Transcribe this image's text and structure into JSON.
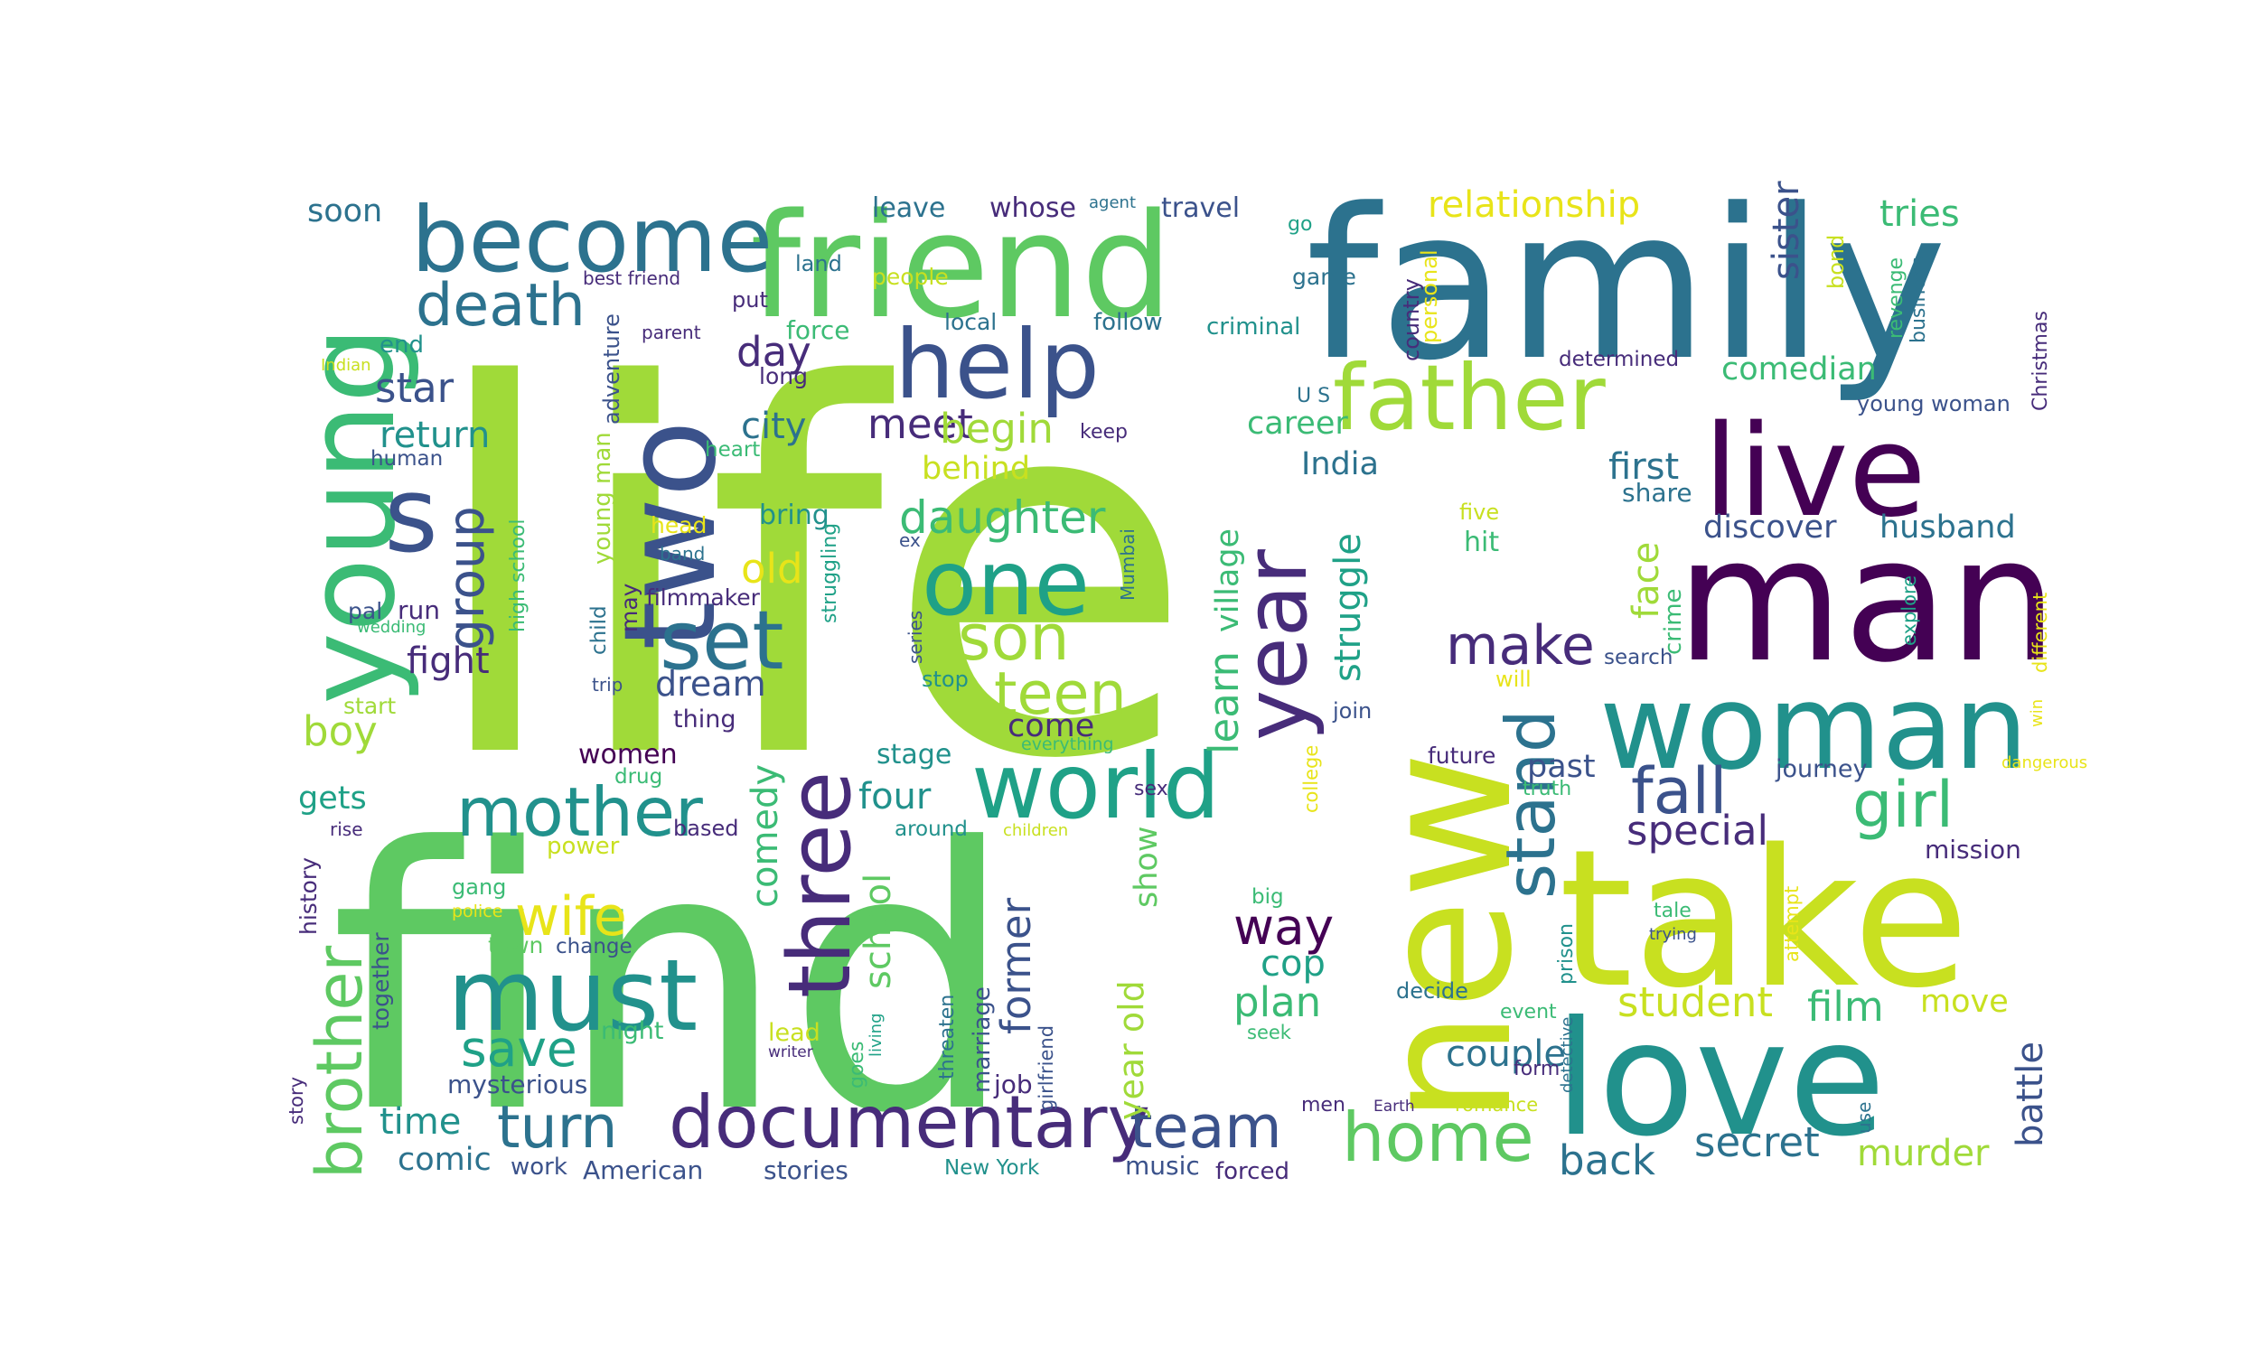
{
  "palette": {
    "dark_purple": "#440154",
    "indigo": "#472c7a",
    "blue": "#3b528b",
    "steel": "#2c728e",
    "teal": "#21918c",
    "sea": "#1fa187",
    "green": "#3bbb75",
    "light_green": "#5ec962",
    "lime": "#a0da39",
    "yellow_green": "#c8e020",
    "yellow": "#e8e419"
  },
  "words": [
    {
      "text": "life",
      "color": "lime"
    },
    {
      "text": "find",
      "color": "light_green"
    },
    {
      "text": "family",
      "color": "steel"
    },
    {
      "text": "take",
      "color": "yellow_green"
    },
    {
      "text": "new",
      "color": "yellow_green"
    },
    {
      "text": "friend",
      "color": "light_green"
    },
    {
      "text": "man",
      "color": "dark_purple"
    },
    {
      "text": "love",
      "color": "teal"
    },
    {
      "text": "woman",
      "color": "teal"
    },
    {
      "text": "young",
      "color": "green"
    },
    {
      "text": "two",
      "color": "blue"
    },
    {
      "text": "live",
      "color": "dark_purple"
    },
    {
      "text": "must",
      "color": "teal"
    },
    {
      "text": "world",
      "color": "sea"
    },
    {
      "text": "documentary",
      "color": "indigo"
    },
    {
      "text": "become",
      "color": "steel"
    },
    {
      "text": "father",
      "color": "lime"
    },
    {
      "text": "help",
      "color": "blue"
    },
    {
      "text": "one",
      "color": "sea"
    },
    {
      "text": "three",
      "color": "indigo"
    },
    {
      "text": "mother",
      "color": "teal"
    },
    {
      "text": "s",
      "color": "blue"
    },
    {
      "text": "year",
      "color": "indigo"
    },
    {
      "text": "set",
      "color": "steel"
    },
    {
      "text": "home",
      "color": "light_green"
    },
    {
      "text": "stand",
      "color": "steel"
    },
    {
      "text": "death",
      "color": "steel"
    },
    {
      "text": "son",
      "color": "lime"
    },
    {
      "text": "teen",
      "color": "lime"
    },
    {
      "text": "brother",
      "color": "light_green"
    },
    {
      "text": "turn",
      "color": "steel"
    },
    {
      "text": "team",
      "color": "blue"
    },
    {
      "text": "wife",
      "color": "yellow"
    },
    {
      "text": "girl",
      "color": "green"
    },
    {
      "text": "fall",
      "color": "blue"
    },
    {
      "text": "make",
      "color": "indigo"
    },
    {
      "text": "save",
      "color": "sea"
    },
    {
      "text": "group",
      "color": "blue"
    },
    {
      "text": "way",
      "color": "dark_purple"
    },
    {
      "text": "daughter",
      "color": "green"
    },
    {
      "text": "special",
      "color": "indigo"
    },
    {
      "text": "back",
      "color": "steel"
    },
    {
      "text": "secret",
      "color": "steel"
    },
    {
      "text": "murder",
      "color": "lime"
    },
    {
      "text": "student",
      "color": "yellow_green"
    },
    {
      "text": "film",
      "color": "green"
    },
    {
      "text": "couple",
      "color": "steel"
    },
    {
      "text": "learn",
      "color": "green"
    },
    {
      "text": "village",
      "color": "green"
    },
    {
      "text": "struggle",
      "color": "sea"
    },
    {
      "text": "face",
      "color": "lime"
    },
    {
      "text": "battle",
      "color": "blue"
    },
    {
      "text": "meet",
      "color": "indigo"
    },
    {
      "text": "begin",
      "color": "lime"
    },
    {
      "text": "day",
      "color": "indigo"
    },
    {
      "text": "city",
      "color": "steel"
    },
    {
      "text": "old",
      "color": "yellow"
    },
    {
      "text": "plan",
      "color": "green"
    },
    {
      "text": "cop",
      "color": "sea"
    },
    {
      "text": "school",
      "color": "light_green"
    },
    {
      "text": "comedy",
      "color": "green"
    },
    {
      "text": "former",
      "color": "blue"
    },
    {
      "text": "four",
      "color": "teal"
    },
    {
      "text": "show",
      "color": "light_green"
    },
    {
      "text": "year old",
      "color": "lime"
    },
    {
      "text": "time",
      "color": "teal"
    },
    {
      "text": "star",
      "color": "blue"
    },
    {
      "text": "return",
      "color": "teal"
    },
    {
      "text": "fight",
      "color": "indigo"
    },
    {
      "text": "boy",
      "color": "lime"
    },
    {
      "text": "gets",
      "color": "sea"
    },
    {
      "text": "relationship",
      "color": "yellow"
    },
    {
      "text": "tries",
      "color": "green"
    },
    {
      "text": "sister",
      "color": "blue"
    },
    {
      "text": "comedian",
      "color": "green"
    },
    {
      "text": "first",
      "color": "steel"
    },
    {
      "text": "discover",
      "color": "blue"
    },
    {
      "text": "husband",
      "color": "steel"
    },
    {
      "text": "career",
      "color": "green"
    },
    {
      "text": "India",
      "color": "steel"
    },
    {
      "text": "behind",
      "color": "yellow_green"
    },
    {
      "text": "dream",
      "color": "blue"
    },
    {
      "text": "come",
      "color": "indigo"
    },
    {
      "text": "past",
      "color": "blue"
    },
    {
      "text": "move",
      "color": "yellow_green"
    },
    {
      "text": "soon",
      "color": "steel"
    },
    {
      "text": "comic",
      "color": "steel"
    },
    {
      "text": "women",
      "color": "dark_purple"
    },
    {
      "text": "mysterious",
      "color": "blue"
    },
    {
      "text": "job",
      "color": "indigo"
    },
    {
      "text": "American",
      "color": "blue"
    },
    {
      "text": "stories",
      "color": "blue"
    },
    {
      "text": "music",
      "color": "blue"
    },
    {
      "text": "forced",
      "color": "indigo"
    },
    {
      "text": "work",
      "color": "blue"
    },
    {
      "text": "mission",
      "color": "indigo"
    },
    {
      "text": "travel",
      "color": "blue"
    },
    {
      "text": "leave",
      "color": "steel"
    },
    {
      "text": "whose",
      "color": "indigo"
    },
    {
      "text": "agent",
      "color": "steel"
    },
    {
      "text": "go",
      "color": "sea"
    },
    {
      "text": "land",
      "color": "steel"
    },
    {
      "text": "people",
      "color": "yellow_green"
    },
    {
      "text": "game",
      "color": "steel"
    },
    {
      "text": "best friend",
      "color": "indigo"
    },
    {
      "text": "put",
      "color": "indigo"
    },
    {
      "text": "force",
      "color": "green"
    },
    {
      "text": "local",
      "color": "steel"
    },
    {
      "text": "follow",
      "color": "steel"
    },
    {
      "text": "criminal",
      "color": "teal"
    },
    {
      "text": "country",
      "color": "indigo"
    },
    {
      "text": "personal",
      "color": "yellow"
    },
    {
      "text": "bond",
      "color": "yellow_green"
    },
    {
      "text": "revenge",
      "color": "green"
    },
    {
      "text": "business",
      "color": "steel"
    },
    {
      "text": "Christmas",
      "color": "indigo"
    },
    {
      "text": "parent",
      "color": "indigo"
    },
    {
      "text": "determined",
      "color": "indigo"
    },
    {
      "text": "end",
      "color": "teal"
    },
    {
      "text": "long",
      "color": "indigo"
    },
    {
      "text": "adventure",
      "color": "blue"
    },
    {
      "text": "Indian",
      "color": "yellow_green"
    },
    {
      "text": "young woman",
      "color": "blue"
    },
    {
      "text": "U S",
      "color": "steel"
    },
    {
      "text": "keep",
      "color": "indigo"
    },
    {
      "text": "human",
      "color": "blue"
    },
    {
      "text": "heart",
      "color": "green"
    },
    {
      "text": "young man",
      "color": "lime"
    },
    {
      "text": "high school",
      "color": "green"
    },
    {
      "text": "share",
      "color": "steel"
    },
    {
      "text": "bring",
      "color": "teal"
    },
    {
      "text": "head",
      "color": "yellow"
    },
    {
      "text": "band",
      "color": "steel"
    },
    {
      "text": "five",
      "color": "yellow_green"
    },
    {
      "text": "hit",
      "color": "green"
    },
    {
      "text": "filmmaker",
      "color": "indigo"
    },
    {
      "text": "Mumbai",
      "color": "steel"
    },
    {
      "text": "crime",
      "color": "green"
    },
    {
      "text": "ex",
      "color": "blue"
    },
    {
      "text": "pal",
      "color": "blue"
    },
    {
      "text": "run",
      "color": "indigo"
    },
    {
      "text": "wedding",
      "color": "green"
    },
    {
      "text": "child",
      "color": "steel"
    },
    {
      "text": "may",
      "color": "indigo"
    },
    {
      "text": "struggling",
      "color": "sea"
    },
    {
      "text": "series",
      "color": "blue"
    },
    {
      "text": "stop",
      "color": "teal"
    },
    {
      "text": "search",
      "color": "blue"
    },
    {
      "text": "explore",
      "color": "sea"
    },
    {
      "text": "different",
      "color": "yellow"
    },
    {
      "text": "will",
      "color": "yellow"
    },
    {
      "text": "trip",
      "color": "blue"
    },
    {
      "text": "thing",
      "color": "indigo"
    },
    {
      "text": "start",
      "color": "lime"
    },
    {
      "text": "join",
      "color": "blue"
    },
    {
      "text": "win",
      "color": "yellow"
    },
    {
      "text": "everything",
      "color": "green"
    },
    {
      "text": "college",
      "color": "yellow"
    },
    {
      "text": "future",
      "color": "indigo"
    },
    {
      "text": "journey",
      "color": "blue"
    },
    {
      "text": "dangerous",
      "color": "yellow"
    },
    {
      "text": "stage",
      "color": "teal"
    },
    {
      "text": "drug",
      "color": "green"
    },
    {
      "text": "sex",
      "color": "indigo"
    },
    {
      "text": "truth",
      "color": "green"
    },
    {
      "text": "history",
      "color": "indigo"
    },
    {
      "text": "rise",
      "color": "indigo"
    },
    {
      "text": "based",
      "color": "indigo"
    },
    {
      "text": "around",
      "color": "teal"
    },
    {
      "text": "children",
      "color": "yellow_green"
    },
    {
      "text": "power",
      "color": "yellow_green"
    },
    {
      "text": "gang",
      "color": "green"
    },
    {
      "text": "police",
      "color": "yellow"
    },
    {
      "text": "big",
      "color": "green"
    },
    {
      "text": "prison",
      "color": "teal"
    },
    {
      "text": "tale",
      "color": "green"
    },
    {
      "text": "trying",
      "color": "blue"
    },
    {
      "text": "attempt",
      "color": "yellow"
    },
    {
      "text": "together",
      "color": "blue"
    },
    {
      "text": "town",
      "color": "light_green"
    },
    {
      "text": "change",
      "color": "blue"
    },
    {
      "text": "marriage",
      "color": "blue"
    },
    {
      "text": "threaten",
      "color": "steel"
    },
    {
      "text": "girlfriend",
      "color": "blue"
    },
    {
      "text": "decide",
      "color": "steel"
    },
    {
      "text": "event",
      "color": "green"
    },
    {
      "text": "form",
      "color": "indigo"
    },
    {
      "text": "detective",
      "color": "steel"
    },
    {
      "text": "seek",
      "color": "green"
    },
    {
      "text": "night",
      "color": "green"
    },
    {
      "text": "lead",
      "color": "yellow_green"
    },
    {
      "text": "writer",
      "color": "indigo"
    },
    {
      "text": "goes",
      "color": "green"
    },
    {
      "text": "living",
      "color": "sea"
    },
    {
      "text": "story",
      "color": "indigo"
    },
    {
      "text": "men",
      "color": "indigo"
    },
    {
      "text": "Earth",
      "color": "indigo"
    },
    {
      "text": "romance",
      "color": "yellow_green"
    },
    {
      "text": "use",
      "color": "steel"
    },
    {
      "text": "New York",
      "color": "teal"
    }
  ]
}
